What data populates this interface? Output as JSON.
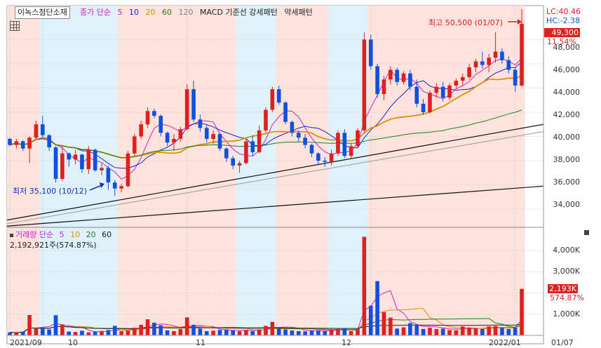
{
  "ticker": "이녹스첨단소재",
  "price_legend": {
    "items": [
      {
        "text": "종가 단순",
        "color": "#d020d0"
      },
      {
        "text": "5",
        "color": "#d020d0"
      },
      {
        "text": "10",
        "color": "#2020d0"
      },
      {
        "text": "20",
        "color": "#e09000"
      },
      {
        "text": "60",
        "color": "#208020"
      },
      {
        "text": "120",
        "color": "#808080"
      },
      {
        "text": "MACD 기준선 강세패턴",
        "color": "#222"
      },
      {
        "text": "약세패턴",
        "color": "#222"
      }
    ]
  },
  "volume_legend": {
    "items": [
      {
        "text": "거래량 단순",
        "color": "#d020d0"
      },
      {
        "text": "5",
        "color": "#d020d0"
      },
      {
        "text": "10",
        "color": "#e09000"
      },
      {
        "text": "20",
        "color": "#208020"
      },
      {
        "text": "60",
        "color": "#222"
      }
    ],
    "value_text": "2,192,921주(574.87%)"
  },
  "price_axis": {
    "labels": [
      "48,000",
      "46,000",
      "44,000",
      "42,000",
      "40,000",
      "38,000",
      "36,000",
      "34,000"
    ]
  },
  "volume_axis": {
    "labels": [
      "4,000K",
      "3,000K",
      "2,000K",
      "1,000K"
    ]
  },
  "right_panel": {
    "lc": "LC:40.46",
    "hc": "HC:-2.38",
    "current_price": "49,300",
    "change_pct": "11.54%",
    "volume_value": "2,193K",
    "volume_pct": "574.87%"
  },
  "x_axis": {
    "labels": [
      "2021/09",
      "10",
      "11",
      "12",
      "2022/01",
      "01/07"
    ]
  },
  "annotations": {
    "high": "최고 50,500 (01/07)",
    "low": "최저 35,100 (10/12)"
  },
  "colors": {
    "up": "#e02020",
    "down": "#1050e0",
    "shade_red": "#fde3dc",
    "shade_blue": "#dff1fb"
  },
  "chart_data": [
    {
      "type": "candlestick",
      "title": "이녹스첨단소재",
      "ylim": [
        32500,
        50800
      ],
      "annotations": [
        "최고 50,500 (01/07)",
        "최저 35,100 (10/12)"
      ],
      "candles": [
        [
          39800,
          39900,
          39200,
          39300
        ],
        [
          39300,
          39800,
          39000,
          39600
        ],
        [
          39600,
          39700,
          38800,
          39000
        ],
        [
          39000,
          40000,
          37800,
          39900
        ],
        [
          39900,
          41300,
          39800,
          41000
        ],
        [
          41000,
          41700,
          39900,
          40100
        ],
        [
          40100,
          40200,
          38800,
          39100
        ],
        [
          39100,
          39200,
          36200,
          36500
        ],
        [
          36500,
          39200,
          36300,
          38600
        ],
        [
          38600,
          38700,
          37500,
          38100
        ],
        [
          38100,
          38900,
          37700,
          38500
        ],
        [
          38500,
          38600,
          37000,
          37300
        ],
        [
          37300,
          39200,
          36900,
          38900
        ],
        [
          38900,
          39000,
          37100,
          37200
        ],
        [
          37200,
          37800,
          36800,
          37400
        ],
        [
          37400,
          37600,
          35600,
          36200
        ],
        [
          36200,
          36400,
          35100,
          35700
        ],
        [
          35700,
          36100,
          35400,
          35900
        ],
        [
          35900,
          38800,
          35800,
          38600
        ],
        [
          38600,
          40200,
          38400,
          40000
        ],
        [
          40000,
          41300,
          39800,
          41000
        ],
        [
          41000,
          42400,
          40700,
          42100
        ],
        [
          42100,
          42300,
          41500,
          41700
        ],
        [
          41700,
          41800,
          40000,
          40300
        ],
        [
          40300,
          40400,
          39200,
          39500
        ],
        [
          39500,
          40200,
          38800,
          39800
        ],
        [
          39800,
          40800,
          39600,
          40600
        ],
        [
          40600,
          44300,
          40500,
          43900
        ],
        [
          43900,
          44600,
          41200,
          41400
        ],
        [
          41400,
          41800,
          40400,
          40700
        ],
        [
          40700,
          40900,
          39500,
          39800
        ],
        [
          39800,
          40500,
          39400,
          40200
        ],
        [
          40200,
          40300,
          38800,
          39000
        ],
        [
          39000,
          39100,
          37900,
          38200
        ],
        [
          38200,
          38400,
          37300,
          37600
        ],
        [
          37600,
          38000,
          37000,
          37800
        ],
        [
          37800,
          39800,
          37700,
          39600
        ],
        [
          39600,
          40100,
          38400,
          38700
        ],
        [
          38700,
          40900,
          38600,
          40500
        ],
        [
          40500,
          42400,
          40300,
          42200
        ],
        [
          42200,
          44100,
          42000,
          43900
        ],
        [
          43900,
          44200,
          42600,
          42800
        ],
        [
          42800,
          42900,
          41000,
          41200
        ],
        [
          41200,
          41300,
          40000,
          40300
        ],
        [
          40300,
          40500,
          39600,
          39900
        ],
        [
          39900,
          40200,
          39000,
          39300
        ],
        [
          39300,
          39400,
          38300,
          38600
        ],
        [
          38600,
          38700,
          37700,
          38000
        ],
        [
          38000,
          38300,
          37500,
          37900
        ],
        [
          37900,
          38900,
          37600,
          38600
        ],
        [
          38600,
          40500,
          38400,
          40300
        ],
        [
          40300,
          40600,
          38200,
          38400
        ],
        [
          38400,
          39400,
          38200,
          39200
        ],
        [
          39200,
          40700,
          39000,
          40500
        ],
        [
          40500,
          48600,
          40300,
          48000
        ],
        [
          48000,
          48400,
          45500,
          45800
        ],
        [
          45800,
          46000,
          43200,
          43500
        ],
        [
          43500,
          45000,
          43000,
          44700
        ],
        [
          44700,
          45800,
          44300,
          45500
        ],
        [
          45500,
          45700,
          44200,
          44500
        ],
        [
          44500,
          45400,
          44300,
          45200
        ],
        [
          45200,
          45500,
          43800,
          44100
        ],
        [
          44100,
          44700,
          42400,
          42700
        ],
        [
          42700,
          43100,
          41800,
          42000
        ],
        [
          42000,
          43800,
          41900,
          43600
        ],
        [
          43600,
          44400,
          43200,
          44100
        ],
        [
          44100,
          44500,
          42900,
          43200
        ],
        [
          43200,
          44400,
          43000,
          44200
        ],
        [
          44200,
          44800,
          43900,
          44600
        ],
        [
          44600,
          45200,
          44200,
          44900
        ],
        [
          44900,
          46000,
          44700,
          45700
        ],
        [
          45700,
          46400,
          45300,
          46200
        ],
        [
          46200,
          47000,
          45600,
          45900
        ],
        [
          45900,
          46800,
          45300,
          46500
        ],
        [
          46500,
          48600,
          46100,
          47000
        ],
        [
          47000,
          47300,
          46000,
          46300
        ],
        [
          46300,
          46600,
          45200,
          45500
        ],
        [
          45500,
          45700,
          43700,
          44200
        ],
        [
          44200,
          50500,
          44100,
          49300
        ]
      ]
    },
    {
      "type": "bar",
      "title": "거래량",
      "ylim": [
        0,
        4900
      ],
      "ylabel": "K",
      "values": [
        140,
        120,
        180,
        960,
        310,
        350,
        280,
        950,
        520,
        180,
        160,
        220,
        140,
        180,
        210,
        250,
        450,
        200,
        220,
        360,
        500,
        760,
        600,
        480,
        240,
        200,
        300,
        850,
        500,
        320,
        200,
        220,
        260,
        280,
        230,
        200,
        260,
        200,
        280,
        450,
        640,
        320,
        280,
        230,
        200,
        190,
        220,
        240,
        200,
        260,
        300,
        340,
        200,
        300,
        4650,
        1400,
        2560,
        1100,
        840,
        320,
        380,
        580,
        500,
        300,
        360,
        300,
        320,
        250,
        240,
        420,
        360,
        340,
        300,
        420,
        440,
        360,
        300,
        360,
        2193
      ]
    }
  ]
}
